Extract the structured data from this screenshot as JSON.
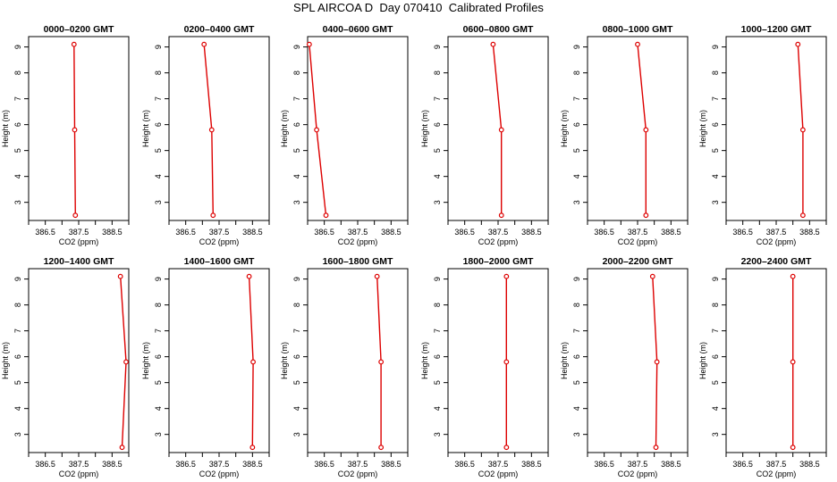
{
  "title": "SPL AIRCOA D  Day 070410  Calibrated Profiles",
  "colors": {
    "profile": "#dd0000",
    "axis": "#000000"
  },
  "chart_data": [
    {
      "type": "line",
      "title": "0000–0200 GMT",
      "xlabel": "CO2 (ppm)",
      "ylabel": "Height (m)",
      "xticks": [
        "386.5",
        "387.5",
        "388.5"
      ],
      "xlim": [
        386.0,
        389.0
      ],
      "ylim": [
        2.3,
        9.4
      ],
      "x": [
        387.4,
        387.38,
        387.36
      ],
      "y": [
        2.5,
        5.8,
        9.1
      ]
    },
    {
      "type": "line",
      "title": "0200–0400 GMT",
      "xlabel": "CO2 (ppm)",
      "ylabel": "Height (m)",
      "xticks": [
        "386.5",
        "387.5",
        "388.5"
      ],
      "xlim": [
        386.0,
        389.0
      ],
      "ylim": [
        2.3,
        9.4
      ],
      "x": [
        387.32,
        387.28,
        387.05
      ],
      "y": [
        2.5,
        5.8,
        9.1
      ]
    },
    {
      "type": "line",
      "title": "0400–0600 GMT",
      "xlabel": "CO2 (ppm)",
      "ylabel": "Height (m)",
      "xticks": [
        "386.5",
        "387.5",
        "388.5"
      ],
      "xlim": [
        386.0,
        389.0
      ],
      "ylim": [
        2.3,
        9.4
      ],
      "x": [
        386.55,
        386.27,
        386.05
      ],
      "y": [
        2.5,
        5.8,
        9.1
      ]
    },
    {
      "type": "line",
      "title": "0600–0800 GMT",
      "xlabel": "CO2 (ppm)",
      "ylabel": "Height (m)",
      "xticks": [
        "386.5",
        "387.5",
        "388.5"
      ],
      "xlim": [
        386.0,
        389.0
      ],
      "ylim": [
        2.3,
        9.4
      ],
      "x": [
        387.6,
        387.6,
        387.35
      ],
      "y": [
        2.5,
        5.8,
        9.1
      ]
    },
    {
      "type": "line",
      "title": "0800–1000 GMT",
      "xlabel": "CO2 (ppm)",
      "ylabel": "Height (m)",
      "xticks": [
        "386.5",
        "387.5",
        "388.5"
      ],
      "xlim": [
        386.0,
        389.0
      ],
      "ylim": [
        2.3,
        9.4
      ],
      "x": [
        387.75,
        387.75,
        387.5
      ],
      "y": [
        2.5,
        5.8,
        9.1
      ]
    },
    {
      "type": "line",
      "title": "1000–1200 GMT",
      "xlabel": "CO2 (ppm)",
      "ylabel": "Height (m)",
      "xticks": [
        "386.5",
        "387.5",
        "388.5"
      ],
      "xlim": [
        386.0,
        389.0
      ],
      "ylim": [
        2.3,
        9.4
      ],
      "x": [
        388.3,
        388.3,
        388.15
      ],
      "y": [
        2.5,
        5.8,
        9.1
      ]
    },
    {
      "type": "line",
      "title": "1200–1400 GMT",
      "xlabel": "CO2 (ppm)",
      "ylabel": "Height (m)",
      "xticks": [
        "386.5",
        "387.5",
        "388.5"
      ],
      "xlim": [
        386.0,
        389.0
      ],
      "ylim": [
        2.3,
        9.4
      ],
      "x": [
        388.8,
        388.92,
        388.75
      ],
      "y": [
        2.5,
        5.8,
        9.1
      ]
    },
    {
      "type": "line",
      "title": "1400–1600 GMT",
      "xlabel": "CO2 (ppm)",
      "ylabel": "Height (m)",
      "xticks": [
        "386.5",
        "387.5",
        "388.5"
      ],
      "xlim": [
        386.0,
        389.0
      ],
      "ylim": [
        2.3,
        9.4
      ],
      "x": [
        388.5,
        388.52,
        388.4
      ],
      "y": [
        2.5,
        5.8,
        9.1
      ]
    },
    {
      "type": "line",
      "title": "1600–1800 GMT",
      "xlabel": "CO2 (ppm)",
      "ylabel": "Height (m)",
      "xticks": [
        "386.5",
        "387.5",
        "388.5"
      ],
      "xlim": [
        386.0,
        389.0
      ],
      "ylim": [
        2.3,
        9.4
      ],
      "x": [
        388.2,
        388.2,
        388.08
      ],
      "y": [
        2.5,
        5.8,
        9.1
      ]
    },
    {
      "type": "line",
      "title": "1800–2000 GMT",
      "xlabel": "CO2 (ppm)",
      "ylabel": "Height (m)",
      "xticks": [
        "386.5",
        "387.5",
        "388.5"
      ],
      "xlim": [
        386.0,
        389.0
      ],
      "ylim": [
        2.3,
        9.4
      ],
      "x": [
        387.75,
        387.75,
        387.75
      ],
      "y": [
        2.5,
        5.8,
        9.1
      ]
    },
    {
      "type": "line",
      "title": "2000–2200 GMT",
      "xlabel": "CO2 (ppm)",
      "ylabel": "Height (m)",
      "xticks": [
        "386.5",
        "387.5",
        "388.5"
      ],
      "xlim": [
        386.0,
        389.0
      ],
      "ylim": [
        2.3,
        9.4
      ],
      "x": [
        388.05,
        388.08,
        387.95
      ],
      "y": [
        2.5,
        5.8,
        9.1
      ]
    },
    {
      "type": "line",
      "title": "2200–2400 GMT",
      "xlabel": "CO2 (ppm)",
      "ylabel": "Height (m)",
      "xticks": [
        "386.5",
        "387.5",
        "388.5"
      ],
      "xlim": [
        386.0,
        389.0
      ],
      "ylim": [
        2.3,
        9.4
      ],
      "x": [
        388.0,
        388.0,
        388.0
      ],
      "y": [
        2.5,
        5.8,
        9.1
      ]
    }
  ]
}
